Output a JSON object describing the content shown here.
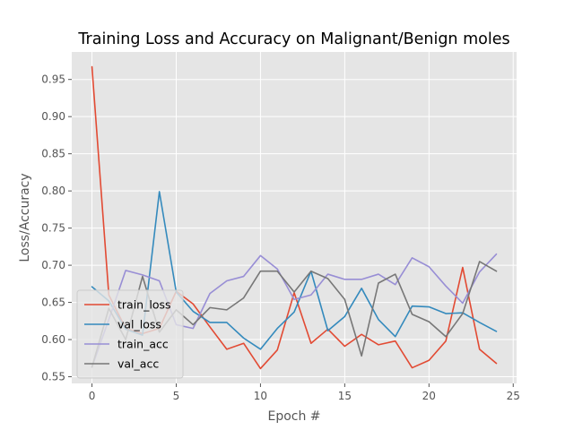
{
  "chart_data": {
    "type": "line",
    "title": "Training Loss and Accuracy on Malignant/Benign moles",
    "xlabel": "Epoch #",
    "ylabel": "Loss/Accuracy",
    "xlim": [
      -1.2,
      25.2
    ],
    "ylim": [
      0.541,
      0.987
    ],
    "xticks": [
      0,
      5,
      10,
      15,
      20,
      25
    ],
    "yticks": [
      0.55,
      0.6,
      0.65,
      0.7,
      0.75,
      0.8,
      0.85,
      0.9,
      0.95
    ],
    "grid": true,
    "legend": "lower-left",
    "x": [
      0,
      1,
      2,
      3,
      4,
      5,
      6,
      7,
      8,
      9,
      10,
      11,
      12,
      13,
      14,
      15,
      16,
      17,
      18,
      19,
      20,
      21,
      22,
      23,
      24
    ],
    "series": [
      {
        "name": "train_loss",
        "color": "#E24A33",
        "values": [
          0.967,
          0.66,
          0.615,
          0.608,
          0.615,
          0.665,
          0.648,
          0.617,
          0.587,
          0.595,
          0.561,
          0.586,
          0.663,
          0.595,
          0.614,
          0.591,
          0.607,
          0.593,
          0.598,
          0.562,
          0.572,
          0.598,
          0.697,
          0.587,
          0.568
        ]
      },
      {
        "name": "val_loss",
        "color": "#348ABD",
        "values": [
          0.671,
          0.652,
          0.614,
          0.606,
          0.799,
          0.664,
          0.638,
          0.623,
          0.623,
          0.602,
          0.587,
          0.615,
          0.637,
          0.692,
          0.612,
          0.631,
          0.669,
          0.627,
          0.604,
          0.645,
          0.644,
          0.635,
          0.636,
          0.623,
          0.611
        ]
      },
      {
        "name": "train_acc",
        "color": "#988ED5",
        "values": [
          0.563,
          0.627,
          0.693,
          0.687,
          0.679,
          0.62,
          0.615,
          0.662,
          0.679,
          0.685,
          0.713,
          0.695,
          0.654,
          0.66,
          0.688,
          0.681,
          0.681,
          0.688,
          0.674,
          0.71,
          0.698,
          0.672,
          0.649,
          0.691,
          0.715
        ]
      },
      {
        "name": "val_acc",
        "color": "#777777",
        "values": [
          0.563,
          0.642,
          0.6,
          0.685,
          0.61,
          0.64,
          0.62,
          0.643,
          0.64,
          0.656,
          0.692,
          0.692,
          0.664,
          0.692,
          0.682,
          0.654,
          0.578,
          0.676,
          0.688,
          0.634,
          0.624,
          0.604,
          0.635,
          0.705,
          0.692
        ]
      }
    ]
  }
}
